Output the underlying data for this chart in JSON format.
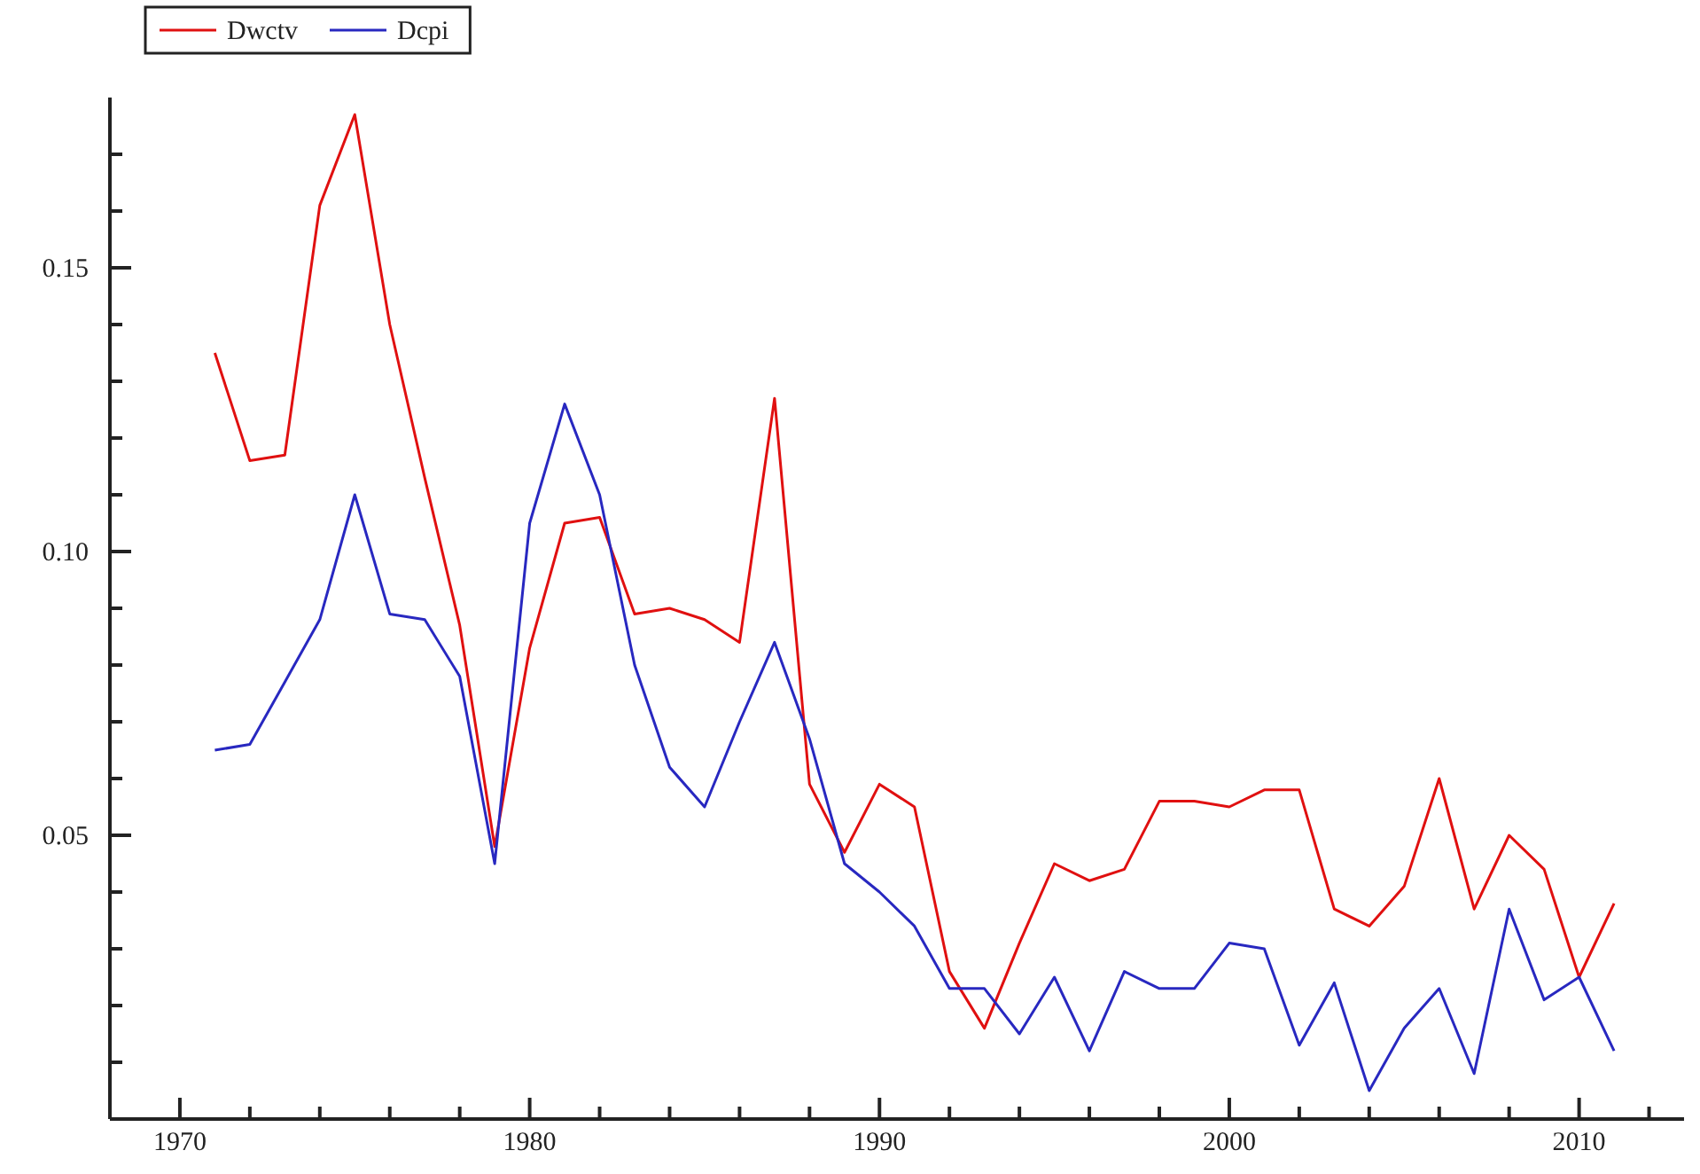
{
  "chart_data": {
    "type": "line",
    "x": [
      1971,
      1972,
      1973,
      1974,
      1975,
      1976,
      1977,
      1978,
      1979,
      1980,
      1981,
      1982,
      1983,
      1984,
      1985,
      1986,
      1987,
      1988,
      1989,
      1990,
      1991,
      1992,
      1993,
      1994,
      1995,
      1996,
      1997,
      1998,
      1999,
      2000,
      2001,
      2002,
      2003,
      2004,
      2005,
      2006,
      2007,
      2008,
      2009,
      2010,
      2011
    ],
    "series": [
      {
        "name": "Dwctv",
        "color": "#e01010",
        "values": [
          0.135,
          0.116,
          0.117,
          0.161,
          0.177,
          0.14,
          0.113,
          0.087,
          0.048,
          0.083,
          0.105,
          0.106,
          0.089,
          0.09,
          0.088,
          0.084,
          0.127,
          0.059,
          0.047,
          0.059,
          0.055,
          0.026,
          0.016,
          0.031,
          0.045,
          0.042,
          0.044,
          0.056,
          0.056,
          0.055,
          0.058,
          0.058,
          0.037,
          0.034,
          0.041,
          0.06,
          0.037,
          0.05,
          0.044,
          0.025,
          0.038
        ]
      },
      {
        "name": "Dcpi",
        "color": "#2828c0",
        "values": [
          0.065,
          0.066,
          0.077,
          0.088,
          0.11,
          0.089,
          0.088,
          0.078,
          0.045,
          0.105,
          0.126,
          0.11,
          0.08,
          0.062,
          0.055,
          0.07,
          0.084,
          0.067,
          0.045,
          0.04,
          0.034,
          0.023,
          0.023,
          0.015,
          0.025,
          0.012,
          0.026,
          0.023,
          0.023,
          0.031,
          0.03,
          0.013,
          0.024,
          0.005,
          0.016,
          0.023,
          0.008,
          0.037,
          0.021,
          0.025,
          0.012
        ]
      }
    ],
    "xlim": [
      1968,
      2013
    ],
    "xticks": [
      {
        "value": 1970,
        "label": "1970"
      },
      {
        "value": 1972,
        "label": null
      },
      {
        "value": 1974,
        "label": null
      },
      {
        "value": 1976,
        "label": null
      },
      {
        "value": 1978,
        "label": null
      },
      {
        "value": 1980,
        "label": "1980"
      },
      {
        "value": 1982,
        "label": null
      },
      {
        "value": 1984,
        "label": null
      },
      {
        "value": 1986,
        "label": null
      },
      {
        "value": 1988,
        "label": null
      },
      {
        "value": 1990,
        "label": "1990"
      },
      {
        "value": 1992,
        "label": null
      },
      {
        "value": 1994,
        "label": null
      },
      {
        "value": 1996,
        "label": null
      },
      {
        "value": 1998,
        "label": null
      },
      {
        "value": 2000,
        "label": "2000"
      },
      {
        "value": 2002,
        "label": null
      },
      {
        "value": 2004,
        "label": null
      },
      {
        "value": 2006,
        "label": null
      },
      {
        "value": 2008,
        "label": null
      },
      {
        "value": 2010,
        "label": "2010"
      },
      {
        "value": 2012,
        "label": null
      }
    ],
    "ylim": [
      0,
      0.18
    ],
    "yticks": [
      {
        "value": 0.01,
        "label": null
      },
      {
        "value": 0.02,
        "label": null
      },
      {
        "value": 0.03,
        "label": null
      },
      {
        "value": 0.04,
        "label": null
      },
      {
        "value": 0.05,
        "label": "0.05"
      },
      {
        "value": 0.06,
        "label": null
      },
      {
        "value": 0.07,
        "label": null
      },
      {
        "value": 0.08,
        "label": null
      },
      {
        "value": 0.09,
        "label": null
      },
      {
        "value": 0.1,
        "label": "0.10"
      },
      {
        "value": 0.11,
        "label": null
      },
      {
        "value": 0.12,
        "label": null
      },
      {
        "value": 0.13,
        "label": null
      },
      {
        "value": 0.14,
        "label": null
      },
      {
        "value": 0.15,
        "label": "0.15"
      },
      {
        "value": 0.16,
        "label": null
      },
      {
        "value": 0.17,
        "label": null
      }
    ],
    "grid": false,
    "legend": "top left",
    "line_style": "solid",
    "marker": "none"
  }
}
